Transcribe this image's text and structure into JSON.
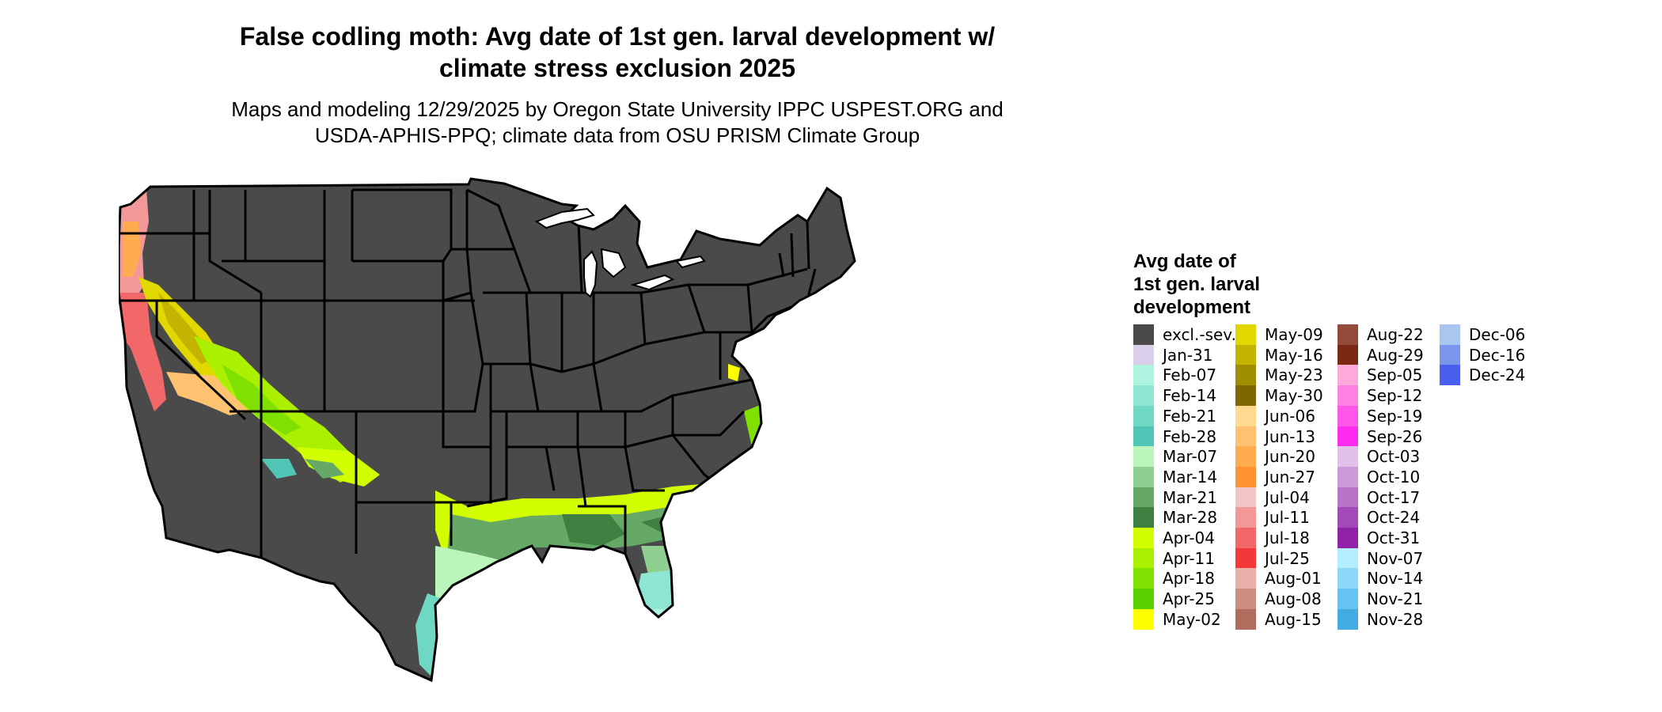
{
  "title": "False codling moth: Avg date of 1st gen. larval development w/\nclimate stress exclusion 2025",
  "subtitle": "Maps and modeling 12/29/2025 by Oregon State University IPPC USPEST.ORG and\nUSDA-APHIS-PPQ; climate data from OSU PRISM Climate Group",
  "legend": {
    "title": "Avg date of\n1st gen. larval\ndevelopment",
    "items": [
      {
        "label": "excl.-sev.",
        "color": "#4a4a4a"
      },
      {
        "label": "Jan-31",
        "color": "#d9cfea"
      },
      {
        "label": "Feb-07",
        "color": "#aef2e0"
      },
      {
        "label": "Feb-14",
        "color": "#8ee6d2"
      },
      {
        "label": "Feb-21",
        "color": "#6fd8c4"
      },
      {
        "label": "Feb-28",
        "color": "#52c6b6"
      },
      {
        "label": "Mar-07",
        "color": "#bcf5bc"
      },
      {
        "label": "Mar-14",
        "color": "#8fcf8f"
      },
      {
        "label": "Mar-21",
        "color": "#66a866"
      },
      {
        "label": "Mar-28",
        "color": "#3f7f3f"
      },
      {
        "label": "Apr-04",
        "color": "#d2ff00"
      },
      {
        "label": "Apr-11",
        "color": "#aaf000"
      },
      {
        "label": "Apr-18",
        "color": "#80e000"
      },
      {
        "label": "Apr-25",
        "color": "#5ad000"
      },
      {
        "label": "May-02",
        "color": "#ffff00"
      },
      {
        "label": "May-09",
        "color": "#e0d800"
      },
      {
        "label": "May-16",
        "color": "#c2b400"
      },
      {
        "label": "May-23",
        "color": "#a08e00"
      },
      {
        "label": "May-30",
        "color": "#7f6600"
      },
      {
        "label": "Jun-06",
        "color": "#ffd98f"
      },
      {
        "label": "Jun-13",
        "color": "#ffc270"
      },
      {
        "label": "Jun-20",
        "color": "#ffab50"
      },
      {
        "label": "Jun-27",
        "color": "#ff9430"
      },
      {
        "label": "Jul-04",
        "color": "#f2c6c6"
      },
      {
        "label": "Jul-11",
        "color": "#f29898"
      },
      {
        "label": "Jul-18",
        "color": "#f26868"
      },
      {
        "label": "Jul-25",
        "color": "#f23838"
      },
      {
        "label": "Aug-01",
        "color": "#e8b0a8"
      },
      {
        "label": "Aug-08",
        "color": "#cc8e80"
      },
      {
        "label": "Aug-15",
        "color": "#b06c5c"
      },
      {
        "label": "Aug-22",
        "color": "#944a38"
      },
      {
        "label": "Aug-29",
        "color": "#7a2814"
      },
      {
        "label": "Sep-05",
        "color": "#ffaad8"
      },
      {
        "label": "Sep-12",
        "color": "#ff80e0"
      },
      {
        "label": "Sep-19",
        "color": "#ff56e8"
      },
      {
        "label": "Sep-26",
        "color": "#ff2cf0"
      },
      {
        "label": "Oct-03",
        "color": "#e0c2e8"
      },
      {
        "label": "Oct-10",
        "color": "#cc9ad8"
      },
      {
        "label": "Oct-17",
        "color": "#b872c8"
      },
      {
        "label": "Oct-24",
        "color": "#a44ab8"
      },
      {
        "label": "Oct-31",
        "color": "#9022a8"
      },
      {
        "label": "Nov-07",
        "color": "#b2eeff"
      },
      {
        "label": "Nov-14",
        "color": "#8cd8f8"
      },
      {
        "label": "Nov-21",
        "color": "#66c2f0"
      },
      {
        "label": "Nov-28",
        "color": "#40ace0"
      },
      {
        "label": "Dec-06",
        "color": "#a8c6f0"
      },
      {
        "label": "Dec-16",
        "color": "#7a96ec"
      },
      {
        "label": "Dec-24",
        "color": "#4a5ef0"
      }
    ]
  }
}
